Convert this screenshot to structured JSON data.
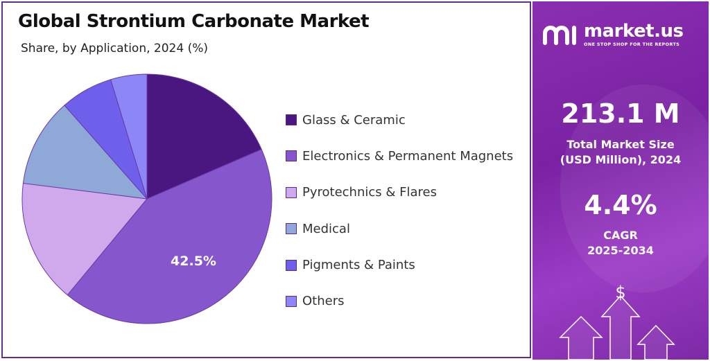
{
  "chart_data": {
    "type": "pie",
    "title": "Global Strontium Carbonate Market",
    "subtitle": "Share, by Application, 2024 (%)",
    "categories": [
      "Glass & Ceramic",
      "Electronics & Permanent Magnets",
      "Pyrotechnics & Flares",
      "Medical",
      "Pigments & Paints",
      "Others"
    ],
    "values": [
      18.5,
      42.5,
      16.0,
      11.5,
      6.8,
      4.7
    ],
    "colors": [
      "#4a1780",
      "#8656cc",
      "#d0a8ec",
      "#8ea8d8",
      "#6e60ea",
      "#8c86f6"
    ],
    "data_labels": {
      "Electronics & Permanent Magnets": "42.5%"
    },
    "legend_position": "right"
  },
  "brand": {
    "name": "market.us",
    "tagline": "ONE STOP SHOP FOR THE REPORTS"
  },
  "stats": {
    "market_size_value": "213.1 M",
    "market_size_label_line1": "Total Market Size",
    "market_size_label_line2": "(USD Million), 2024",
    "cagr_value": "4.4%",
    "cagr_label_line1": "CAGR",
    "cagr_label_line2": "2025-2034",
    "currency_symbol": "$"
  },
  "colors": {
    "panel_purple": "#7a22a3",
    "border_purple": "#6b2a8c"
  }
}
